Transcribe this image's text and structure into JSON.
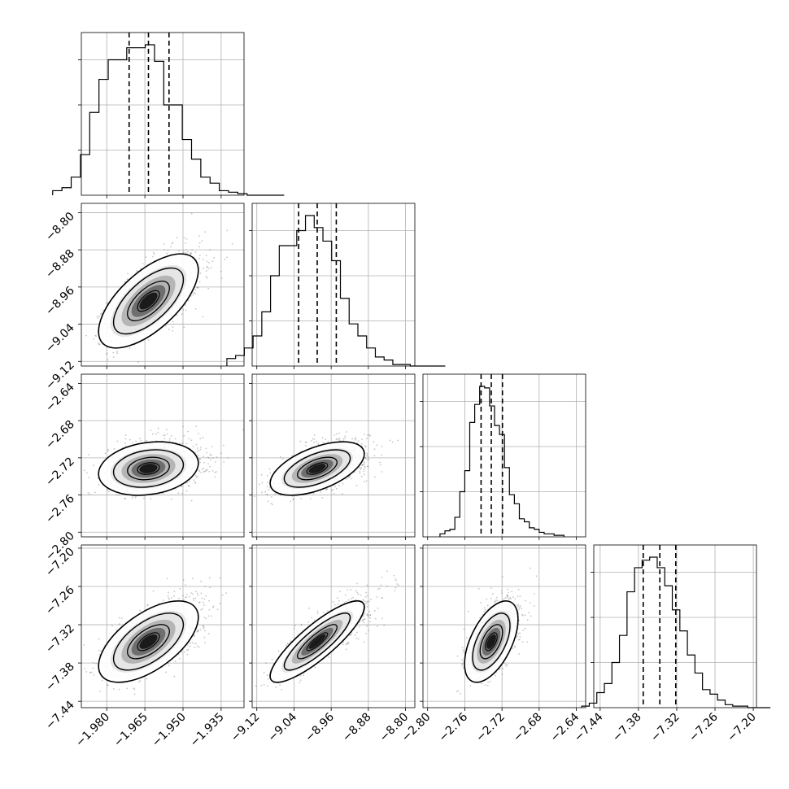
{
  "chart_data": {
    "type": "corner",
    "grid": true,
    "quantile_lines": "dashed",
    "contours": "black",
    "point_color": "#808080",
    "parameters": [
      {
        "index": 0,
        "range": [
          -1.99,
          -1.926
        ],
        "median": -1.9636,
        "lo": -1.9712,
        "hi": -1.9555,
        "ticks": [
          "−1.980",
          "−1.965",
          "−1.950",
          "−1.935"
        ],
        "tick_values": [
          -1.98,
          -1.965,
          -1.95,
          -1.935
        ]
      },
      {
        "index": 1,
        "range": [
          -9.13,
          -8.78
        ],
        "median": -8.99,
        "lo": -9.03,
        "hi": -8.949,
        "ticks": [
          "−9.12",
          "−9.04",
          "−8.96",
          "−8.88",
          "−8.80"
        ],
        "tick_values": [
          -9.12,
          -9.04,
          -8.96,
          -8.88,
          -8.8
        ]
      },
      {
        "index": 2,
        "range": [
          -2.805,
          -2.63
        ],
        "median": -2.7315,
        "lo": -2.7425,
        "hi": -2.7195,
        "ticks": [
          "−2.80",
          "−2.76",
          "−2.72",
          "−2.68",
          "−2.64"
        ],
        "tick_values": [
          -2.8,
          -2.76,
          -2.72,
          -2.68,
          -2.64
        ]
      },
      {
        "index": 3,
        "range": [
          -7.45,
          -7.195
        ],
        "median": -7.3465,
        "lo": -7.3725,
        "hi": -7.3215,
        "ticks": [
          "−7.44",
          "−7.38",
          "−7.32",
          "−7.26",
          "−7.20"
        ],
        "tick_values": [
          -7.44,
          -7.38,
          -7.32,
          -7.26,
          -7.2
        ]
      }
    ],
    "histograms": [
      {
        "param": 0,
        "density": [
          0.03,
          0.05,
          0.12,
          0.27,
          0.55,
          0.77,
          0.9,
          0.9,
          0.98,
          0.98,
          1.0,
          0.89,
          0.6,
          0.6,
          0.37,
          0.24,
          0.12,
          0.08,
          0.03,
          0.02,
          0.01,
          0.0,
          0.0,
          0.0,
          0.0
        ]
      },
      {
        "param": 1,
        "density": [
          0.05,
          0.07,
          0.12,
          0.2,
          0.36,
          0.6,
          0.8,
          0.8,
          0.9,
          1.0,
          0.92,
          0.83,
          0.7,
          0.45,
          0.28,
          0.2,
          0.12,
          0.06,
          0.04,
          0.01,
          0.01,
          0.0,
          0.0,
          0.0,
          0.0
        ]
      },
      {
        "param": 2,
        "density": [
          0.02,
          0.04,
          0.05,
          0.13,
          0.3,
          0.44,
          0.76,
          0.88,
          1.0,
          0.99,
          0.87,
          0.74,
          0.68,
          0.46,
          0.28,
          0.22,
          0.12,
          0.1,
          0.06,
          0.05,
          0.03,
          0.02,
          0.02,
          0.01,
          0.01
        ]
      },
      {
        "param": 3,
        "density": [
          0.01,
          0.03,
          0.1,
          0.16,
          0.3,
          0.48,
          0.77,
          0.93,
          0.98,
          1.0,
          0.93,
          0.81,
          0.65,
          0.51,
          0.35,
          0.23,
          0.12,
          0.09,
          0.05,
          0.02,
          0.01,
          0.01,
          0.0,
          0.0,
          0.0
        ]
      }
    ],
    "joint_panels": [
      {
        "x_param": 0,
        "y_param": 1,
        "correlation": 0.65
      },
      {
        "x_param": 0,
        "y_param": 2,
        "correlation": 0.2
      },
      {
        "x_param": 1,
        "y_param": 2,
        "correlation": 0.55
      },
      {
        "x_param": 0,
        "y_param": 3,
        "correlation": 0.6
      },
      {
        "x_param": 1,
        "y_param": 3,
        "correlation": 0.85
      },
      {
        "x_param": 2,
        "y_param": 3,
        "correlation": 0.55
      }
    ]
  }
}
